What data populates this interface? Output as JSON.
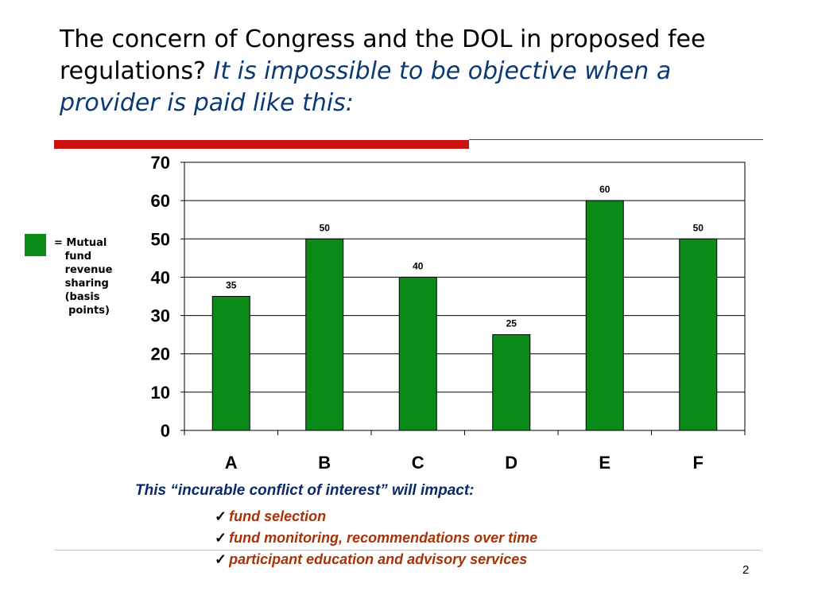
{
  "slide": {
    "title_plain": "The concern of Congress and the DOL in proposed fee regulations?",
    "title_italic": "It is impossible to be objective when a provider is paid like this:",
    "legend_text": "= Mutual\n   fund\n   revenue\n   sharing\n   (basis\n    points)",
    "legend_color": "#0a8a16",
    "impact_heading": "This “incurable conflict of interest” will impact:",
    "impact_items": [
      "fund selection",
      "fund monitoring, recommendations over time",
      "participant education and advisory services"
    ],
    "check_symbol": "✓",
    "page_number": "2",
    "accent_red": "#cc1111"
  },
  "chart_data": {
    "type": "bar",
    "categories": [
      "A",
      "B",
      "C",
      "D",
      "E",
      "F"
    ],
    "values": [
      35,
      50,
      40,
      25,
      60,
      50
    ],
    "ylim": [
      0,
      70
    ],
    "yticks": [
      0,
      10,
      20,
      30,
      40,
      50,
      60,
      70
    ],
    "grid": true,
    "bar_color": "#0a8a16",
    "title": "",
    "xlabel": "",
    "ylabel": ""
  }
}
